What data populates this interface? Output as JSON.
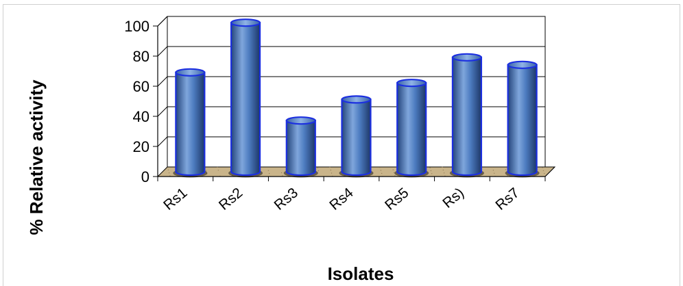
{
  "chart_data": {
    "type": "bar",
    "style": "3d-cylinder",
    "categories": [
      "Rs1",
      "Rs2",
      "Rs3",
      "Rs4",
      "Rs5",
      "Rs)",
      "Rs7"
    ],
    "values": [
      66,
      99,
      34,
      48,
      59,
      76,
      71
    ],
    "xlabel": "Isolates",
    "ylabel": "% Relative activity",
    "ylim": [
      0,
      100
    ],
    "yticks": [
      0,
      20,
      40,
      60,
      80,
      100
    ],
    "grid": true,
    "legend": "none",
    "colors": {
      "bar_body": "#4a78bd",
      "bar_outline": "#1c2fe0",
      "floor": "#c9b48a",
      "gridline": "#000000"
    }
  }
}
